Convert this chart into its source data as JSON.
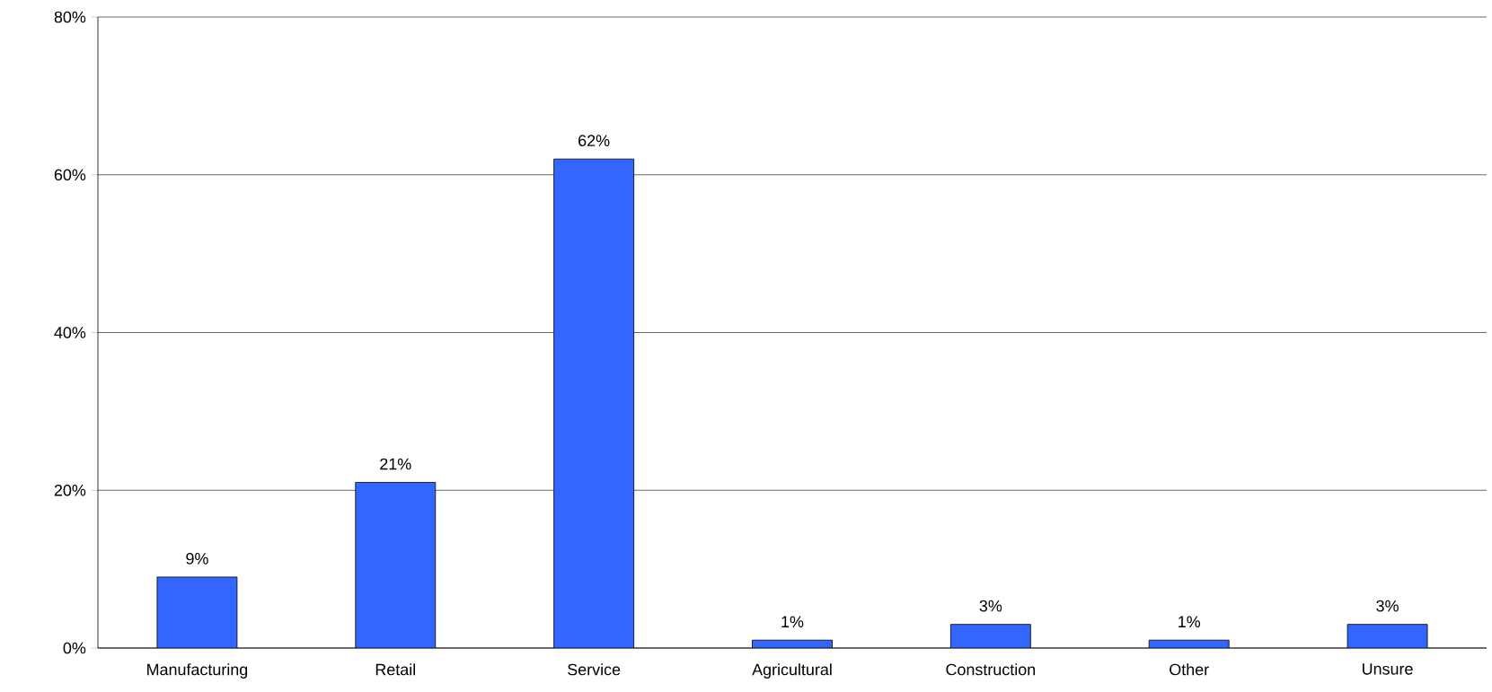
{
  "chart_data": {
    "type": "bar",
    "categories": [
      "Manufacturing",
      "Retail",
      "Service",
      "Agricultural",
      "Construction",
      "Other",
      "Unsure"
    ],
    "values": [
      9,
      21,
      62,
      1,
      3,
      1,
      3
    ],
    "value_labels": [
      "9%",
      "21%",
      "62%",
      "1%",
      "3%",
      "1%",
      "3%"
    ],
    "color": "#3366ff",
    "ylim": [
      0,
      80
    ],
    "yticks": [
      {
        "value": 0,
        "label": "0%"
      },
      {
        "value": 20,
        "label": "20%"
      },
      {
        "value": 40,
        "label": "40%"
      },
      {
        "value": 60,
        "label": "60%"
      },
      {
        "value": 80,
        "label": "80%"
      }
    ],
    "grid": "y"
  }
}
